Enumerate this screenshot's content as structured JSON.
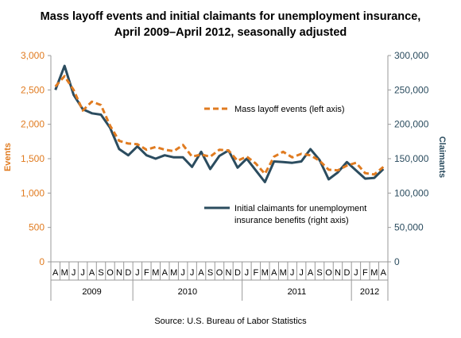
{
  "chart_data": {
    "type": "line",
    "title": [
      "Mass layoff events and initial claimants for unemployment insurance,",
      "April 2009–April 2012, seasonally adjusted"
    ],
    "source": "Source: U.S. Bureau of Labor Statistics",
    "y_left": {
      "label": "Events",
      "ticks": [
        "0",
        "500",
        "1,000",
        "1,500",
        "2,000",
        "2,500",
        "3,000"
      ],
      "range": [
        0,
        3000
      ]
    },
    "y_right": {
      "label": "Claimants",
      "ticks": [
        "0",
        "50,000",
        "100,000",
        "150,000",
        "200,000",
        "250,000",
        "300,000"
      ],
      "range": [
        0,
        300000
      ]
    },
    "months": [
      "A",
      "M",
      "J",
      "J",
      "A",
      "S",
      "O",
      "N",
      "D",
      "J",
      "F",
      "M",
      "A",
      "M",
      "J",
      "J",
      "A",
      "S",
      "O",
      "N",
      "D",
      "J",
      "F",
      "M",
      "A",
      "M",
      "J",
      "J",
      "A",
      "S",
      "O",
      "N",
      "D",
      "J",
      "F",
      "M",
      "A"
    ],
    "years": [
      {
        "label": "2009",
        "start": 0,
        "count": 9
      },
      {
        "label": "2010",
        "start": 9,
        "count": 12
      },
      {
        "label": "2011",
        "start": 21,
        "count": 12
      },
      {
        "label": "2012",
        "start": 33,
        "count": 4
      }
    ],
    "series": [
      {
        "name": "Mass layoff events (left axis)",
        "axis": "left",
        "color": "#e07b20",
        "style": "dashed",
        "values": [
          2550,
          2700,
          2500,
          2200,
          2330,
          2280,
          1980,
          1760,
          1720,
          1710,
          1630,
          1670,
          1630,
          1610,
          1700,
          1530,
          1560,
          1530,
          1630,
          1620,
          1470,
          1530,
          1430,
          1280,
          1530,
          1600,
          1520,
          1570,
          1550,
          1470,
          1340,
          1330,
          1400,
          1440,
          1290,
          1270,
          1380
        ]
      },
      {
        "name": "Initial claimants for unemployment insurance benefits (right axis)",
        "axis": "right",
        "color": "#2b4c5f",
        "style": "solid",
        "values": [
          250000,
          285000,
          243000,
          222000,
          216000,
          214000,
          195000,
          164000,
          155000,
          168000,
          155000,
          150000,
          155000,
          152000,
          152000,
          138000,
          160000,
          135000,
          154000,
          162000,
          137000,
          150000,
          133000,
          116000,
          146000,
          145000,
          144000,
          146000,
          164000,
          148000,
          120000,
          130000,
          145000,
          133000,
          121000,
          122000,
          135000
        ]
      }
    ],
    "legend": [
      {
        "series": 0,
        "lines": [
          "Mass layoff events (left axis)"
        ]
      },
      {
        "series": 1,
        "lines": [
          "Initial claimants for unemployment",
          "insurance benefits (right axis)"
        ]
      }
    ]
  }
}
